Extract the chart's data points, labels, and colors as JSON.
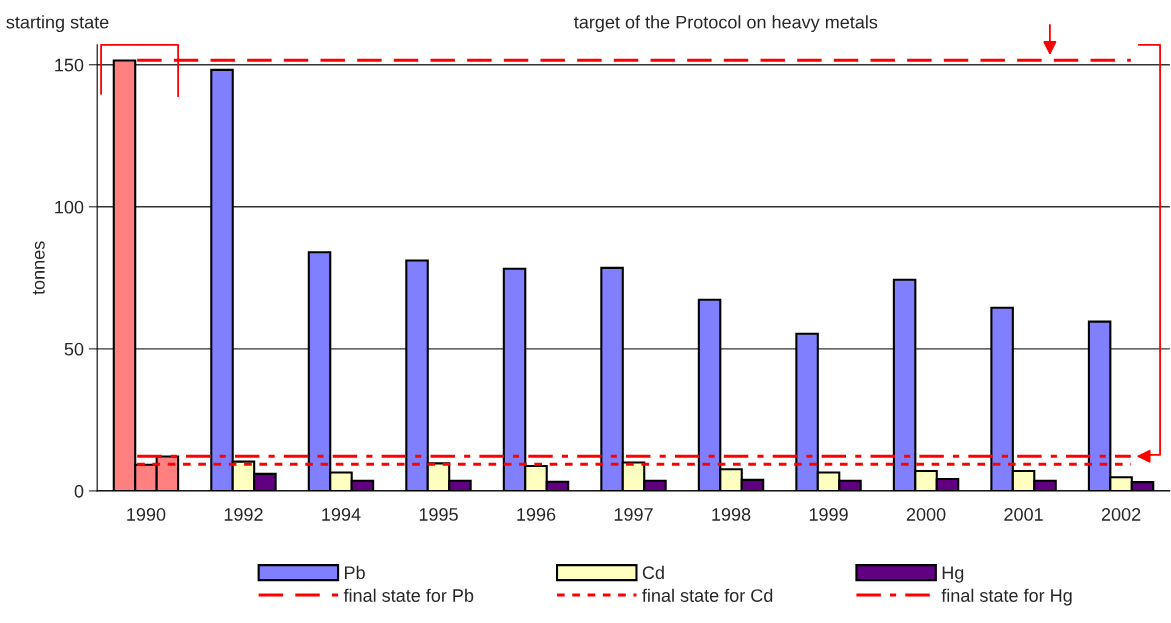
{
  "chart_data": {
    "type": "bar",
    "ylabel": "tonnes",
    "categories": [
      "1990",
      "1992",
      "1994",
      "1995",
      "1996",
      "1997",
      "1998",
      "1999",
      "2000",
      "2001",
      "2002"
    ],
    "series": [
      {
        "name": "Pb",
        "color": "#8080ff",
        "colors": [
          "#ff8080",
          "#8080ff",
          "#8080ff",
          "#8080ff",
          "#8080ff",
          "#8080ff",
          "#8080ff",
          "#8080ff",
          "#8080ff",
          "#8080ff",
          "#8080ff"
        ],
        "values": [
          151.5,
          148.2,
          84.0,
          81.1,
          78.2,
          78.5,
          67.3,
          55.3,
          74.3,
          64.5,
          59.6
        ]
      },
      {
        "name": "Cd",
        "color": "#ffffc0",
        "colors": [
          "#ff8080",
          "#ffffc0",
          "#ffffc0",
          "#ffffc0",
          "#ffffc0",
          "#ffffc0",
          "#ffffc0",
          "#ffffc0",
          "#ffffc0",
          "#ffffc0",
          "#ffffc0"
        ],
        "values": [
          9.2,
          10.3,
          6.5,
          9.7,
          8.8,
          10.0,
          7.6,
          6.5,
          7.0,
          7.0,
          4.8
        ]
      },
      {
        "name": "Hg",
        "color": "#600080",
        "colors": [
          "#ff8080",
          "#600080",
          "#600080",
          "#600080",
          "#600080",
          "#600080",
          "#600080",
          "#600080",
          "#600080",
          "#600080",
          "#600080"
        ],
        "values": [
          12.1,
          6.0,
          3.6,
          3.6,
          3.2,
          3.6,
          3.9,
          3.6,
          4.2,
          3.6,
          3.1
        ]
      }
    ],
    "ref_lines": [
      {
        "axis": "y",
        "value": 151.6,
        "label": "final state for Pb",
        "color": "#ff0000",
        "line_style": "dashed"
      },
      {
        "axis": "y",
        "value": 9.4,
        "label": "final state for Cd",
        "color": "#ff0000",
        "line_style": "dotted"
      },
      {
        "axis": "y",
        "value": 12.2,
        "label": "final state for Hg",
        "color": "#ff0000",
        "line_style": "dashdot"
      }
    ],
    "annotations": [
      "starting state",
      "target of the Protocol on heavy metals"
    ],
    "ylim": [
      0,
      157
    ],
    "yticks": [
      0,
      50,
      100,
      150
    ],
    "grid": "y",
    "legend": "bottom"
  }
}
